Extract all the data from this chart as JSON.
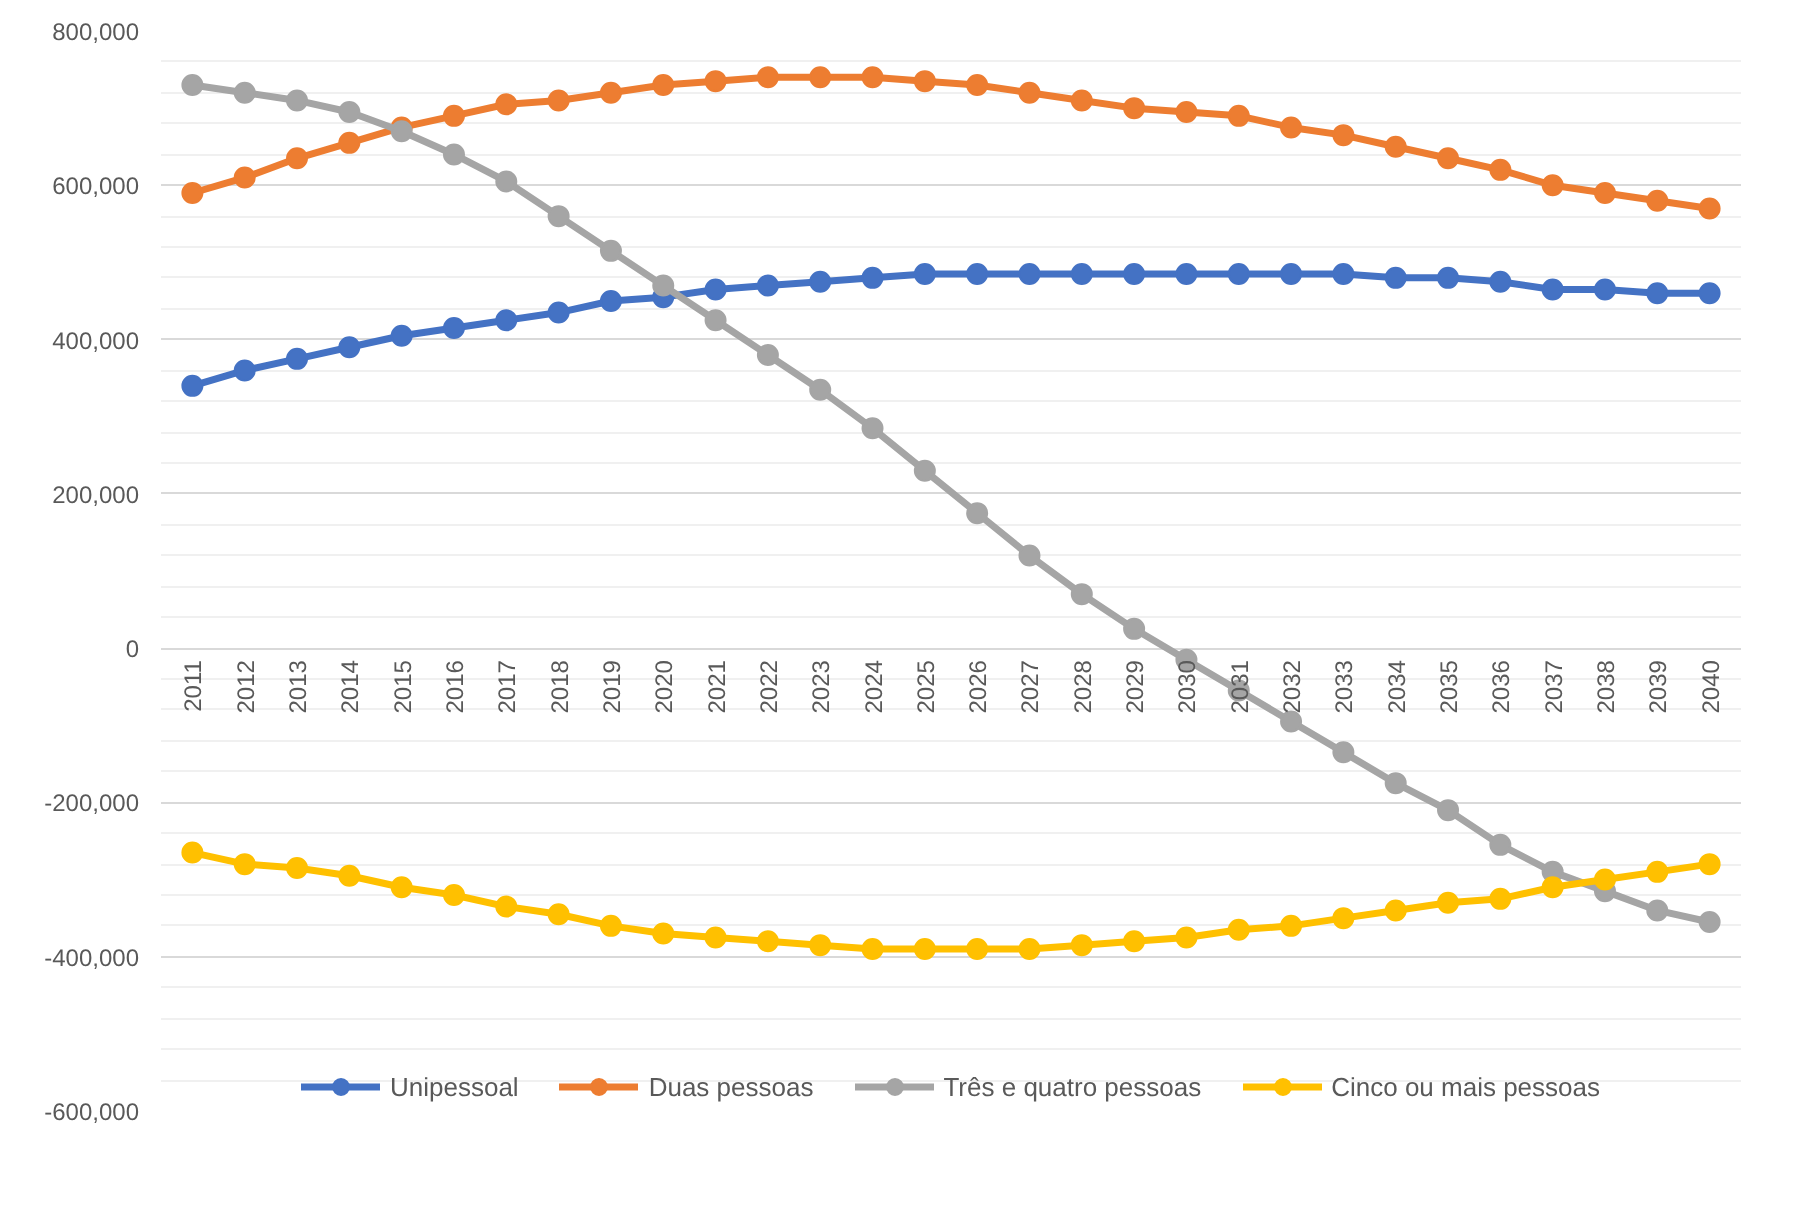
{
  "chart_data": {
    "type": "line",
    "categories": [
      "2011",
      "2012",
      "2013",
      "2014",
      "2015",
      "2016",
      "2017",
      "2018",
      "2019",
      "2020",
      "2021",
      "2022",
      "2023",
      "2024",
      "2025",
      "2026",
      "2027",
      "2028",
      "2029",
      "2030",
      "2031",
      "2032",
      "2033",
      "2034",
      "2035",
      "2036",
      "2037",
      "2038",
      "2039",
      "2040"
    ],
    "series": [
      {
        "name": "Unipessoal",
        "color": "#4472c4",
        "values": [
          340000,
          360000,
          375000,
          390000,
          405000,
          415000,
          425000,
          435000,
          450000,
          455000,
          465000,
          470000,
          475000,
          480000,
          485000,
          485000,
          485000,
          485000,
          485000,
          485000,
          485000,
          485000,
          485000,
          480000,
          480000,
          475000,
          465000,
          465000,
          460000,
          460000
        ]
      },
      {
        "name": "Duas pessoas",
        "color": "#ed7d31",
        "values": [
          590000,
          610000,
          635000,
          655000,
          675000,
          690000,
          705000,
          710000,
          720000,
          730000,
          735000,
          740000,
          740000,
          740000,
          735000,
          730000,
          720000,
          710000,
          700000,
          695000,
          690000,
          675000,
          665000,
          650000,
          635000,
          620000,
          600000,
          590000,
          580000,
          570000
        ]
      },
      {
        "name": "Três e quatro pessoas",
        "color": "#a5a5a5",
        "values": [
          730000,
          720000,
          710000,
          695000,
          670000,
          640000,
          605000,
          560000,
          515000,
          470000,
          425000,
          380000,
          335000,
          285000,
          230000,
          175000,
          120000,
          70000,
          25000,
          -15000,
          -55000,
          -95000,
          -135000,
          -175000,
          -210000,
          -255000,
          -290000,
          -315000,
          -340000,
          -355000
        ]
      },
      {
        "name": "Cinco ou mais pessoas",
        "color": "#ffc000",
        "values": [
          -265000,
          -280000,
          -285000,
          -295000,
          -310000,
          -320000,
          -335000,
          -345000,
          -360000,
          -370000,
          -375000,
          -380000,
          -385000,
          -390000,
          -390000,
          -390000,
          -390000,
          -385000,
          -380000,
          -375000,
          -365000,
          -360000,
          -350000,
          -340000,
          -330000,
          -325000,
          -310000,
          -300000,
          -290000,
          -280000
        ]
      }
    ],
    "ylim": [
      -600000,
      800000
    ],
    "yticks": [
      {
        "value": -600000,
        "label": "-600,000"
      },
      {
        "value": -400000,
        "label": "-400,000"
      },
      {
        "value": -200000,
        "label": "-200,000"
      },
      0,
      {
        "value": 200000,
        "label": "200,000"
      },
      {
        "value": 400000,
        "label": "400,000"
      },
      {
        "value": 600000,
        "label": "600,000"
      },
      {
        "value": 800000,
        "label": "800,000"
      }
    ],
    "grid": "y",
    "legend": "bottom",
    "marker": "circle",
    "line_style": "solid"
  }
}
